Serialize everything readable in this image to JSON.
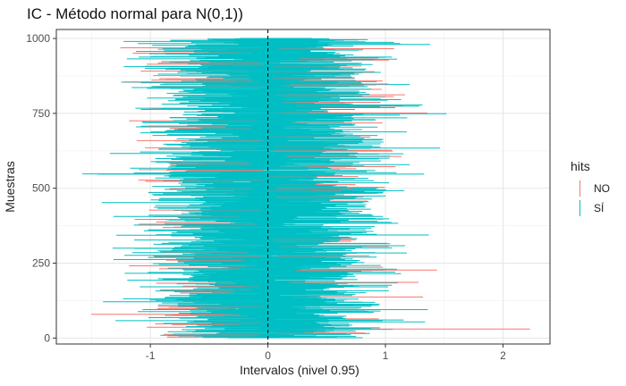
{
  "chart_data": {
    "type": "interval",
    "title": "IC - Método normal para N(0,1))",
    "xlabel": "Intervalos (nivel 0.95)",
    "ylabel": "Muestras",
    "xlim": [
      -1.8,
      2.4
    ],
    "ylim": [
      -20,
      1030
    ],
    "x_ticks": [
      -1,
      0,
      1,
      2
    ],
    "x_tick_labels": [
      "-1",
      "0",
      "1",
      "2"
    ],
    "y_ticks": [
      0,
      250,
      500,
      750,
      1000
    ],
    "y_tick_labels": [
      "0",
      "250",
      "500",
      "750",
      "1000"
    ],
    "reference_line": {
      "x": 0,
      "style": "dashed"
    },
    "n_samples": 1000,
    "legend": {
      "title": "hits",
      "placement": "right"
    },
    "series": [
      {
        "name": "NO",
        "color": "#F8766D",
        "count_approx": 48
      },
      {
        "name": "SÍ",
        "color": "#00BFC4",
        "count_approx": 952
      }
    ],
    "notable_intervals": [
      {
        "sample": 548,
        "lower": -1.58,
        "upper": 0.3,
        "hit": "SÍ"
      },
      {
        "sample": 30,
        "lower": 0.25,
        "upper": 2.23,
        "hit": "NO"
      },
      {
        "sample": 749,
        "lower": -0.05,
        "upper": 1.52,
        "hit": "SÍ"
      },
      {
        "sample": 980,
        "lower": -0.15,
        "upper": 1.38,
        "hit": "SÍ"
      }
    ],
    "grid": true,
    "theme": "white background with light gray grid"
  }
}
